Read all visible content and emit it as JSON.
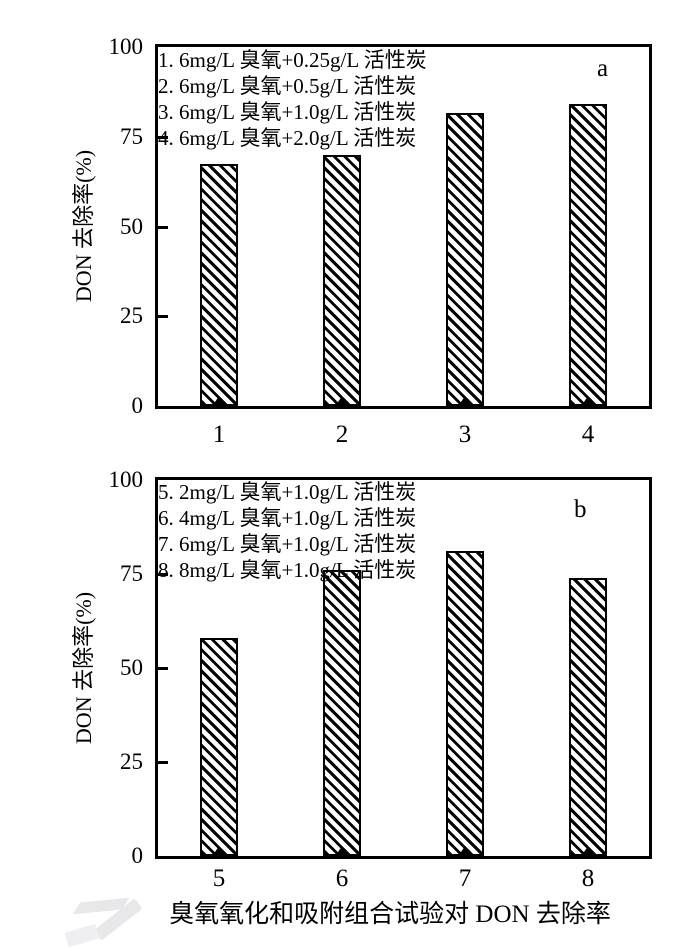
{
  "page": {
    "caption": "臭氧氧化和吸附组合试验对 DON 去除率"
  },
  "colors": {
    "ink": "#000000",
    "background": "#ffffff",
    "watermark": "#e8e8eb"
  },
  "chart_data": [
    {
      "id": "a",
      "type": "bar",
      "panel_label": "a",
      "ylabel": "DON 去除率(%)",
      "xlabel": "",
      "ylim": [
        0,
        100
      ],
      "yticks": [
        0,
        25,
        50,
        75,
        100
      ],
      "categories": [
        "1",
        "2",
        "3",
        "4"
      ],
      "values": [
        67.5,
        70,
        81.5,
        84
      ],
      "legend_lines": [
        "1. 6mg/L 臭氧+0.25g/L 活性炭",
        "2. 6mg/L 臭氧+0.5g/L 活性炭",
        "3. 6mg/L 臭氧+1.0g/L 活性炭",
        "4. 6mg/L 臭氧+2.0g/L 活性炭"
      ],
      "legend_position": "top-left-inside",
      "bar_style": "black diagonal hatch \\\\ on white, black outline",
      "grid": false
    },
    {
      "id": "b",
      "type": "bar",
      "panel_label": "b",
      "ylabel": "DON 去除率(%)",
      "xlabel": "",
      "ylim": [
        0,
        100
      ],
      "yticks": [
        0,
        25,
        50,
        75,
        100
      ],
      "categories": [
        "5",
        "6",
        "7",
        "8"
      ],
      "values": [
        58,
        76,
        81,
        74
      ],
      "legend_lines": [
        "5. 2mg/L 臭氧+1.0g/L 活性炭",
        "6. 4mg/L 臭氧+1.0g/L 活性炭",
        "7. 6mg/L 臭氧+1.0g/L 活性炭",
        "8. 8mg/L 臭氧+1.0g/L 活性炭"
      ],
      "legend_position": "top-left-inside",
      "bar_style": "black diagonal hatch \\\\ on white, black outline",
      "grid": false
    }
  ]
}
